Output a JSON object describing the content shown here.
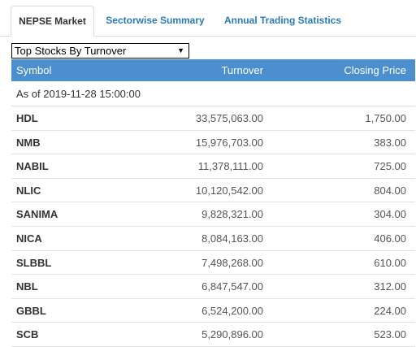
{
  "tabs": [
    {
      "label": "NEPSE Market",
      "active": true
    },
    {
      "label": "Sectorwise Summary",
      "active": false
    },
    {
      "label": "Annual Trading Statistics",
      "active": false
    }
  ],
  "dropdown": {
    "selected": "Top Stocks By Turnover"
  },
  "table": {
    "headers": {
      "symbol": "Symbol",
      "turnover": "Turnover",
      "closing_price": "Closing Price"
    },
    "as_of": "As of 2019-11-28 15:00:00",
    "rows": [
      {
        "symbol": "HDL",
        "turnover": "33,575,063.00",
        "closing_price": "1,750.00"
      },
      {
        "symbol": "NMB",
        "turnover": "15,976,703.00",
        "closing_price": "383.00"
      },
      {
        "symbol": "NABIL",
        "turnover": "11,378,111.00",
        "closing_price": "725.00"
      },
      {
        "symbol": "NLIC",
        "turnover": "10,120,542.00",
        "closing_price": "804.00"
      },
      {
        "symbol": "SANIMA",
        "turnover": "9,828,321.00",
        "closing_price": "304.00"
      },
      {
        "symbol": "NICA",
        "turnover": "8,084,163.00",
        "closing_price": "406.00"
      },
      {
        "symbol": "SLBBL",
        "turnover": "7,498,268.00",
        "closing_price": "610.00"
      },
      {
        "symbol": "NBL",
        "turnover": "6,847,547.00",
        "closing_price": "312.00"
      },
      {
        "symbol": "GBBL",
        "turnover": "6,524,200.00",
        "closing_price": "224.00"
      },
      {
        "symbol": "SCB",
        "turnover": "5,290,896.00",
        "closing_price": "523.00"
      }
    ]
  },
  "colors": {
    "header_bg": "#4c8fcf",
    "tab_link": "#2a7ab8"
  }
}
